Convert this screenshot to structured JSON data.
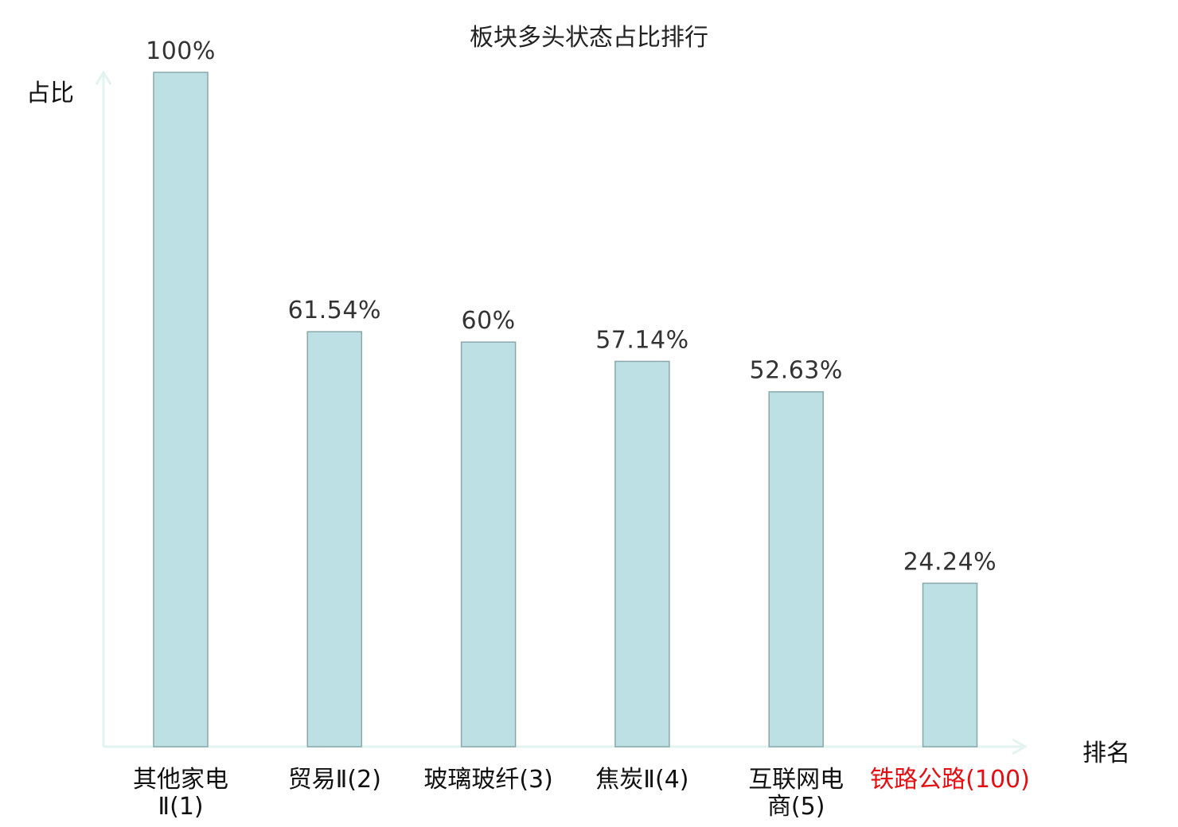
{
  "chart_data": {
    "type": "bar",
    "title": "板块多头状态占比排行",
    "xlabel": "排名",
    "ylabel": "占比",
    "ylim": [
      0,
      100
    ],
    "categories": [
      "其他家电Ⅱ(1)",
      "贸易Ⅱ(2)",
      "玻璃玻纤(3)",
      "焦炭Ⅱ(4)",
      "互联网电商(5)",
      "铁路公路(100)"
    ],
    "values": [
      100,
      61.54,
      60,
      57.14,
      52.63,
      24.24
    ],
    "value_labels": [
      "100%",
      "61.54%",
      "60%",
      "57.14%",
      "52.63%",
      "24.24%"
    ],
    "highlight_category": "铁路公路(100)",
    "grid": false,
    "legend": "none"
  },
  "colors": {
    "bar_fill": "#bce0e3",
    "bar_stroke": "#8aa7aa",
    "axis": "#e3f3f0",
    "highlight_text": "#e50e12",
    "value_text": "#333333"
  }
}
